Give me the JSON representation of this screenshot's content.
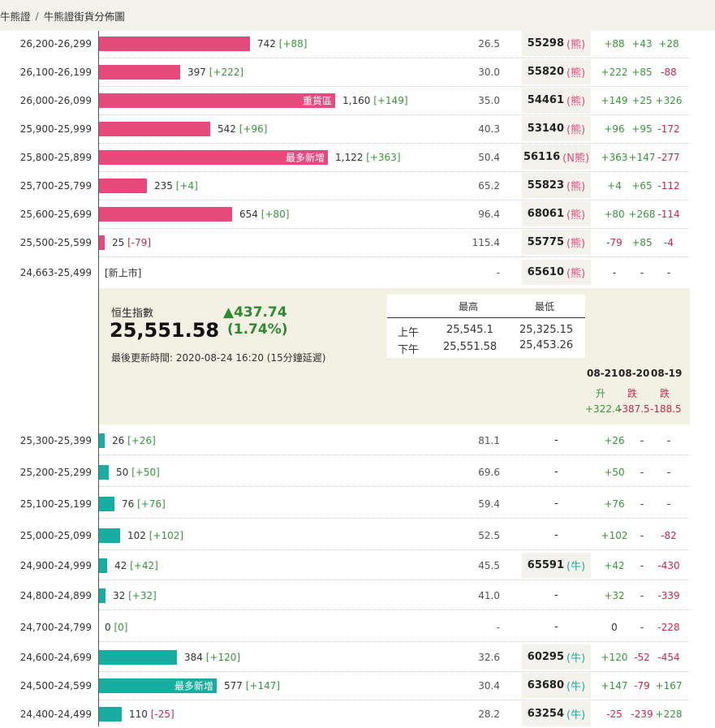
{
  "breadcrumb": {
    "root": "牛熊證",
    "sep": "/",
    "current": "牛熊證街貨分佈圖"
  },
  "bear_rows": [
    {
      "range": "26,200-26,299",
      "amount": "742",
      "change": "[+88]",
      "ratio": "26.5",
      "code": "55298",
      "type": "(熊)",
      "d1": "+88",
      "d2": "+43",
      "d3": "+28"
    },
    {
      "range": "26,100-26,199",
      "amount": "397",
      "change": "[+222]",
      "ratio": "30.0",
      "code": "55820",
      "type": "(熊)",
      "d1": "+222",
      "d2": "+85",
      "d3": "-88"
    },
    {
      "range": "26,000-26,099",
      "amount": "1,160",
      "change": "[+149]",
      "ratio": "35.0",
      "code": "54461",
      "type": "(熊)",
      "d1": "+149",
      "d2": "+25",
      "d3": "+326",
      "tag": "重貨區"
    },
    {
      "range": "25,900-25,999",
      "amount": "542",
      "change": "[+96]",
      "ratio": "40.3",
      "code": "53140",
      "type": "(熊)",
      "d1": "+96",
      "d2": "+95",
      "d3": "-172"
    },
    {
      "range": "25,800-25,899",
      "amount": "1,122",
      "change": "[+363]",
      "ratio": "50.4",
      "code": "56116",
      "type": "(N熊)",
      "d1": "+363",
      "d2": "+147",
      "d3": "-277",
      "tag": "最多新增"
    },
    {
      "range": "25,700-25,799",
      "amount": "235",
      "change": "[+4]",
      "ratio": "65.2",
      "code": "55823",
      "type": "(熊)",
      "d1": "+4",
      "d2": "+65",
      "d3": "-112"
    },
    {
      "range": "25,600-25,699",
      "amount": "654",
      "change": "[+80]",
      "ratio": "96.4",
      "code": "68061",
      "type": "(熊)",
      "d1": "+80",
      "d2": "+268",
      "d3": "-114"
    },
    {
      "range": "25,500-25,599",
      "amount": "25",
      "change": "[-79]",
      "ratio": "115.4",
      "code": "55775",
      "type": "(熊)",
      "d1": "-79",
      "d2": "+85",
      "d3": "-4"
    },
    {
      "range": "24,663-25,499",
      "amount": "[新上市]",
      "change": "",
      "ratio": "-",
      "code": "65610",
      "type": "(熊)",
      "d1": "-",
      "d2": "-",
      "d3": "-"
    }
  ],
  "summary": {
    "index_label": "恒生指數",
    "index_value": "25,551.58",
    "change": "▲437.74",
    "change_pct": "(1.74%)",
    "updated": "最後更新時間: 2020-08-24 16:20 (15分鐘延遲)",
    "hl_headers": {
      "high": "最高",
      "low": "最低"
    },
    "am_label": "上午",
    "am_high": "25,545.1",
    "am_low": "25,325.15",
    "pm_label": "下午",
    "pm_high": "25,551.58",
    "pm_low": "25,453.26",
    "dates": [
      "08-21",
      "08-20",
      "08-19"
    ],
    "directions": [
      "升",
      "跌",
      "跌"
    ],
    "totals": [
      "+322.4",
      "-387.5",
      "-188.5"
    ]
  },
  "bull_rows": [
    {
      "range": "25,300-25,399",
      "amount": "26",
      "change": "[+26]",
      "ratio": "81.1",
      "code": "-",
      "type": "",
      "d1": "+26",
      "d2": "-",
      "d3": "-"
    },
    {
      "range": "25,200-25,299",
      "amount": "50",
      "change": "[+50]",
      "ratio": "69.6",
      "code": "-",
      "type": "",
      "d1": "+50",
      "d2": "-",
      "d3": "-"
    },
    {
      "range": "25,100-25,199",
      "amount": "76",
      "change": "[+76]",
      "ratio": "59.4",
      "code": "-",
      "type": "",
      "d1": "+76",
      "d2": "-",
      "d3": "-"
    },
    {
      "range": "25,000-25,099",
      "amount": "102",
      "change": "[+102]",
      "ratio": "52.5",
      "code": "-",
      "type": "",
      "d1": "+102",
      "d2": "-",
      "d3": "-82"
    },
    {
      "range": "24,900-24,999",
      "amount": "42",
      "change": "[+42]",
      "ratio": "45.5",
      "code": "65591",
      "type": "(牛)",
      "d1": "+42",
      "d2": "-",
      "d3": "-430"
    },
    {
      "range": "24,800-24,899",
      "amount": "32",
      "change": "[+32]",
      "ratio": "41.0",
      "code": "-",
      "type": "",
      "d1": "+32",
      "d2": "-",
      "d3": "-339"
    },
    {
      "range": "24,700-24,799",
      "amount": "0",
      "change": "[0]",
      "ratio": "-",
      "code": "-",
      "type": "",
      "d1": "0",
      "d2": "-",
      "d3": "-228"
    },
    {
      "range": "24,600-24,699",
      "amount": "384",
      "change": "[+120]",
      "ratio": "32.6",
      "code": "60295",
      "type": "(牛)",
      "d1": "+120",
      "d2": "-52",
      "d3": "-454"
    },
    {
      "range": "24,500-24,599",
      "amount": "577",
      "change": "[+147]",
      "ratio": "30.4",
      "code": "63680",
      "type": "(牛)",
      "d1": "+147",
      "d2": "-79",
      "d3": "+167",
      "tag": "最多新增"
    },
    {
      "range": "24,400-24,499",
      "amount": "110",
      "change": "[-25]",
      "ratio": "28.2",
      "code": "63254",
      "type": "(牛)",
      "d1": "-25",
      "d2": "-239",
      "d3": "+228"
    }
  ]
}
